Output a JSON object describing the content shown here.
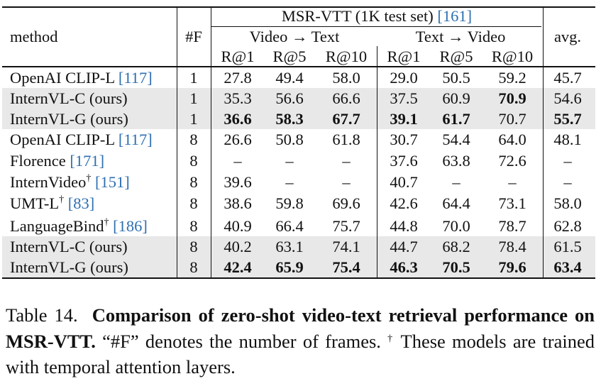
{
  "table": {
    "header": {
      "method": "method",
      "frames": "#F",
      "dataset": "MSR-VTT (1K test set)",
      "dataset_ref": "[161]",
      "group_v2t": "Video → Text",
      "group_t2v": "Text → Video",
      "avg": "avg.",
      "metrics": [
        "R@1",
        "R@5",
        "R@10",
        "R@1",
        "R@5",
        "R@10"
      ]
    },
    "rows": [
      {
        "method": "OpenAI CLIP-L ",
        "ref": "[117]",
        "sup": "",
        "frames": "1",
        "values": [
          "27.8",
          "49.4",
          "58.0",
          "29.0",
          "50.5",
          "59.2"
        ],
        "avg": "45.7",
        "shaded": false,
        "bold": []
      },
      {
        "method": "InternVL-C (ours)",
        "ref": "",
        "sup": "",
        "frames": "1",
        "values": [
          "35.3",
          "56.6",
          "66.6",
          "37.5",
          "60.9",
          "70.9"
        ],
        "avg": "54.6",
        "shaded": true,
        "bold": [
          5
        ]
      },
      {
        "method": "InternVL-G (ours)",
        "ref": "",
        "sup": "",
        "frames": "1",
        "values": [
          "36.6",
          "58.3",
          "67.7",
          "39.1",
          "61.7",
          "70.7"
        ],
        "avg": "55.7",
        "shaded": true,
        "bold": [
          0,
          1,
          2,
          3,
          4,
          6
        ]
      },
      {
        "method": "OpenAI CLIP-L ",
        "ref": "[117]",
        "sup": "",
        "frames": "8",
        "values": [
          "26.6",
          "50.8",
          "61.8",
          "30.7",
          "54.4",
          "64.0"
        ],
        "avg": "48.1",
        "shaded": false,
        "bold": []
      },
      {
        "method": "Florence ",
        "ref": "[171]",
        "sup": "",
        "frames": "8",
        "values": [
          "–",
          "–",
          "–",
          "37.6",
          "63.8",
          "72.6"
        ],
        "avg": "–",
        "shaded": false,
        "bold": []
      },
      {
        "method": "InternVideo",
        "ref": "[151]",
        "sup": "†",
        "frames": "8",
        "values": [
          "39.6",
          "–",
          "–",
          "40.7",
          "–",
          "–"
        ],
        "avg": "–",
        "shaded": false,
        "bold": []
      },
      {
        "method": "UMT-L",
        "ref": "[83]",
        "sup": "†",
        "frames": "8",
        "values": [
          "38.6",
          "59.8",
          "69.6",
          "42.6",
          "64.4",
          "73.1"
        ],
        "avg": "58.0",
        "shaded": false,
        "bold": []
      },
      {
        "method": "LanguageBind",
        "ref": "[186]",
        "sup": "†",
        "frames": "8",
        "values": [
          "40.9",
          "66.4",
          "75.7",
          "44.8",
          "70.0",
          "78.7"
        ],
        "avg": "62.8",
        "shaded": false,
        "bold": []
      },
      {
        "method": "InternVL-C (ours)",
        "ref": "",
        "sup": "",
        "frames": "8",
        "values": [
          "40.2",
          "63.1",
          "74.1",
          "44.7",
          "68.2",
          "78.4"
        ],
        "avg": "61.5",
        "shaded": true,
        "bold": []
      },
      {
        "method": "InternVL-G (ours)",
        "ref": "",
        "sup": "",
        "frames": "8",
        "values": [
          "42.4",
          "65.9",
          "75.4",
          "46.3",
          "70.5",
          "79.6"
        ],
        "avg": "63.4",
        "shaded": true,
        "bold": [
          0,
          1,
          2,
          3,
          4,
          5,
          6
        ]
      }
    ]
  },
  "caption": {
    "label": "Table 14.",
    "title": "Comparison of zero-shot video-text retrieval performance on MSR-VTT.",
    "text": "“#F” denotes the number of frames.",
    "footnote_mark": "†",
    "footnote": "These models are trained with temporal attention layers."
  }
}
